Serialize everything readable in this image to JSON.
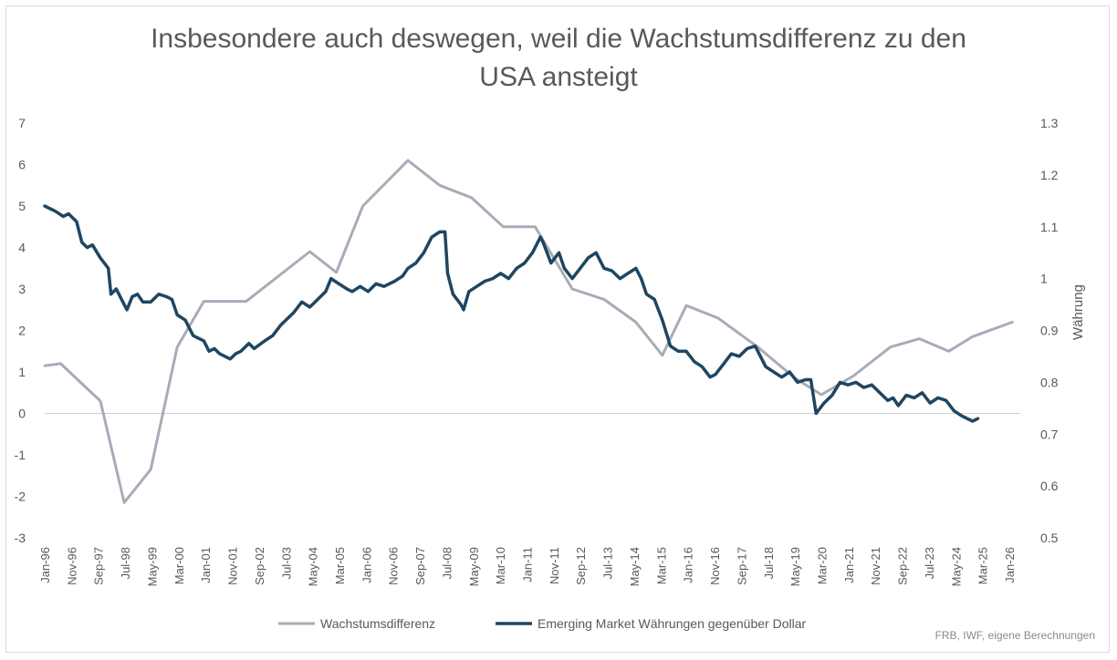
{
  "chart_data": {
    "type": "line",
    "title": "Insbesondere auch deswegen, weil die Wachstumsdifferenz zu den USA ansteigt",
    "title_lines": [
      "Insbesondere auch deswegen, weil die Wachstumsdifferenz zu den",
      "USA ansteigt"
    ],
    "x_tick_labels": [
      "Jan-96",
      "Nov-96",
      "Sep-97",
      "Jul-98",
      "May-99",
      "Mar-00",
      "Jan-01",
      "Nov-01",
      "Sep-02",
      "Jul-03",
      "May-04",
      "Mar-05",
      "Jan-06",
      "Nov-06",
      "Sep-07",
      "Jul-08",
      "May-09",
      "Mar-10",
      "Jan-11",
      "Nov-11",
      "Sep-12",
      "Jul-13",
      "May-14",
      "Mar-15",
      "Jan-16",
      "Nov-16",
      "Sep-17",
      "Jul-18",
      "May-19",
      "Mar-20",
      "Jan-21",
      "Nov-21",
      "Sep-22",
      "Jul-23",
      "May-24",
      "Mar-25",
      "Jan-26"
    ],
    "y_left": {
      "ylim": [
        -3,
        7
      ],
      "ticks": [
        -3,
        -2,
        -1,
        0,
        1,
        2,
        3,
        4,
        5,
        6,
        7
      ],
      "label": ""
    },
    "y_right": {
      "ylim": [
        0.5,
        1.3
      ],
      "ticks": [
        "0.5",
        "0.6",
        "0.7",
        "0.8",
        "0.9",
        "1",
        "1.1",
        "1.2",
        "1.3"
      ],
      "label": "Währung"
    },
    "grid": false,
    "zero_line": true,
    "legend_position": "bottom",
    "series": [
      {
        "name": "Wachstumsdifferenz",
        "axis": "left",
        "color": "#a6adb8",
        "points": [
          [
            "1996-01",
            1.15
          ],
          [
            "1996-07",
            1.2
          ],
          [
            "1997-10",
            0.3
          ],
          [
            "1998-07",
            -2.15
          ],
          [
            "1999-05",
            -1.35
          ],
          [
            "2000-03",
            1.6
          ],
          [
            "2001-01",
            2.7
          ],
          [
            "2002-05",
            2.7
          ],
          [
            "2004-05",
            3.9
          ],
          [
            "2005-03",
            3.4
          ],
          [
            "2006-01",
            5.0
          ],
          [
            "2007-06",
            6.1
          ],
          [
            "2008-06",
            5.5
          ],
          [
            "2009-06",
            5.2
          ],
          [
            "2010-06",
            4.5
          ],
          [
            "2011-06",
            4.5
          ],
          [
            "2012-08",
            3.0
          ],
          [
            "2013-08",
            2.75
          ],
          [
            "2014-08",
            2.2
          ],
          [
            "2015-06",
            1.4
          ],
          [
            "2016-03",
            2.6
          ],
          [
            "2017-03",
            2.3
          ],
          [
            "2018-06",
            1.6
          ],
          [
            "2019-08",
            0.85
          ],
          [
            "2020-06",
            0.45
          ],
          [
            "2021-06",
            0.9
          ],
          [
            "2022-08",
            1.6
          ],
          [
            "2023-07",
            1.8
          ],
          [
            "2024-06",
            1.5
          ],
          [
            "2025-03",
            1.85
          ],
          [
            "2026-06",
            2.2
          ]
        ]
      },
      {
        "name": "Emerging Market Währungen gegenüber Dollar",
        "axis": "right",
        "color": "#1f4661",
        "points": [
          [
            "1996-01",
            1.14
          ],
          [
            "1996-05",
            1.13
          ],
          [
            "1996-08",
            1.12
          ],
          [
            "1996-10",
            1.125
          ],
          [
            "1997-01",
            1.11
          ],
          [
            "1997-03",
            1.07
          ],
          [
            "1997-05",
            1.06
          ],
          [
            "1997-07",
            1.065
          ],
          [
            "1997-10",
            1.04
          ],
          [
            "1998-01",
            1.02
          ],
          [
            "1998-02",
            0.97
          ],
          [
            "1998-04",
            0.98
          ],
          [
            "1998-07",
            0.95
          ],
          [
            "1998-08",
            0.94
          ],
          [
            "1998-10",
            0.965
          ],
          [
            "1998-12",
            0.97
          ],
          [
            "1999-02",
            0.955
          ],
          [
            "1999-05",
            0.955
          ],
          [
            "1999-08",
            0.97
          ],
          [
            "1999-11",
            0.965
          ],
          [
            "2000-01",
            0.96
          ],
          [
            "2000-03",
            0.93
          ],
          [
            "2000-06",
            0.92
          ],
          [
            "2000-09",
            0.89
          ],
          [
            "2001-01",
            0.88
          ],
          [
            "2001-03",
            0.86
          ],
          [
            "2001-05",
            0.865
          ],
          [
            "2001-07",
            0.855
          ],
          [
            "2001-11",
            0.845
          ],
          [
            "2002-01",
            0.855
          ],
          [
            "2002-03",
            0.86
          ],
          [
            "2002-06",
            0.875
          ],
          [
            "2002-08",
            0.865
          ],
          [
            "2002-12",
            0.88
          ],
          [
            "2003-03",
            0.89
          ],
          [
            "2003-06",
            0.91
          ],
          [
            "2003-08",
            0.92
          ],
          [
            "2003-11",
            0.935
          ],
          [
            "2004-02",
            0.955
          ],
          [
            "2004-05",
            0.945
          ],
          [
            "2004-08",
            0.96
          ],
          [
            "2004-11",
            0.975
          ],
          [
            "2005-01",
            1.0
          ],
          [
            "2005-04",
            0.99
          ],
          [
            "2005-07",
            0.98
          ],
          [
            "2005-09",
            0.975
          ],
          [
            "2005-12",
            0.985
          ],
          [
            "2006-03",
            0.975
          ],
          [
            "2006-06",
            0.99
          ],
          [
            "2006-09",
            0.985
          ],
          [
            "2007-01",
            0.995
          ],
          [
            "2007-04",
            1.005
          ],
          [
            "2007-06",
            1.02
          ],
          [
            "2007-09",
            1.03
          ],
          [
            "2007-12",
            1.05
          ],
          [
            "2008-03",
            1.08
          ],
          [
            "2008-06",
            1.09
          ],
          [
            "2008-08",
            1.09
          ],
          [
            "2008-09",
            1.01
          ],
          [
            "2008-11",
            0.97
          ],
          [
            "2009-02",
            0.95
          ],
          [
            "2009-03",
            0.94
          ],
          [
            "2009-05",
            0.975
          ],
          [
            "2009-08",
            0.985
          ],
          [
            "2009-11",
            0.995
          ],
          [
            "2010-02",
            1.0
          ],
          [
            "2010-05",
            1.01
          ],
          [
            "2010-08",
            1.0
          ],
          [
            "2010-11",
            1.02
          ],
          [
            "2011-02",
            1.03
          ],
          [
            "2011-05",
            1.05
          ],
          [
            "2011-08",
            1.08
          ],
          [
            "2011-09",
            1.07
          ],
          [
            "2011-12",
            1.03
          ],
          [
            "2012-03",
            1.05
          ],
          [
            "2012-05",
            1.02
          ],
          [
            "2012-08",
            1.0
          ],
          [
            "2012-11",
            1.02
          ],
          [
            "2013-02",
            1.04
          ],
          [
            "2013-05",
            1.05
          ],
          [
            "2013-08",
            1.02
          ],
          [
            "2013-11",
            1.015
          ],
          [
            "2014-02",
            1.0
          ],
          [
            "2014-05",
            1.01
          ],
          [
            "2014-08",
            1.02
          ],
          [
            "2014-10",
            1.0
          ],
          [
            "2014-12",
            0.97
          ],
          [
            "2015-03",
            0.96
          ],
          [
            "2015-06",
            0.92
          ],
          [
            "2015-09",
            0.87
          ],
          [
            "2015-12",
            0.86
          ],
          [
            "2016-03",
            0.86
          ],
          [
            "2016-06",
            0.84
          ],
          [
            "2016-09",
            0.83
          ],
          [
            "2016-12",
            0.81
          ],
          [
            "2017-02",
            0.815
          ],
          [
            "2017-05",
            0.835
          ],
          [
            "2017-08",
            0.855
          ],
          [
            "2017-11",
            0.85
          ],
          [
            "2018-02",
            0.865
          ],
          [
            "2018-05",
            0.87
          ],
          [
            "2018-07",
            0.85
          ],
          [
            "2018-09",
            0.83
          ],
          [
            "2018-12",
            0.82
          ],
          [
            "2019-03",
            0.81
          ],
          [
            "2019-06",
            0.82
          ],
          [
            "2019-09",
            0.8
          ],
          [
            "2019-12",
            0.805
          ],
          [
            "2020-02",
            0.805
          ],
          [
            "2020-04",
            0.74
          ],
          [
            "2020-07",
            0.76
          ],
          [
            "2020-10",
            0.775
          ],
          [
            "2021-01",
            0.8
          ],
          [
            "2021-04",
            0.795
          ],
          [
            "2021-07",
            0.8
          ],
          [
            "2021-10",
            0.79
          ],
          [
            "2022-01",
            0.795
          ],
          [
            "2022-04",
            0.78
          ],
          [
            "2022-07",
            0.765
          ],
          [
            "2022-09",
            0.77
          ],
          [
            "2022-11",
            0.755
          ],
          [
            "2023-02",
            0.775
          ],
          [
            "2023-05",
            0.77
          ],
          [
            "2023-08",
            0.78
          ],
          [
            "2023-11",
            0.76
          ],
          [
            "2024-02",
            0.77
          ],
          [
            "2024-05",
            0.765
          ],
          [
            "2024-08",
            0.745
          ],
          [
            "2024-11",
            0.735
          ],
          [
            "2025-01",
            0.73
          ],
          [
            "2025-03",
            0.725
          ],
          [
            "2025-05",
            0.73
          ]
        ]
      }
    ],
    "source": "FRB, IWF, eigene Berechnungen"
  }
}
